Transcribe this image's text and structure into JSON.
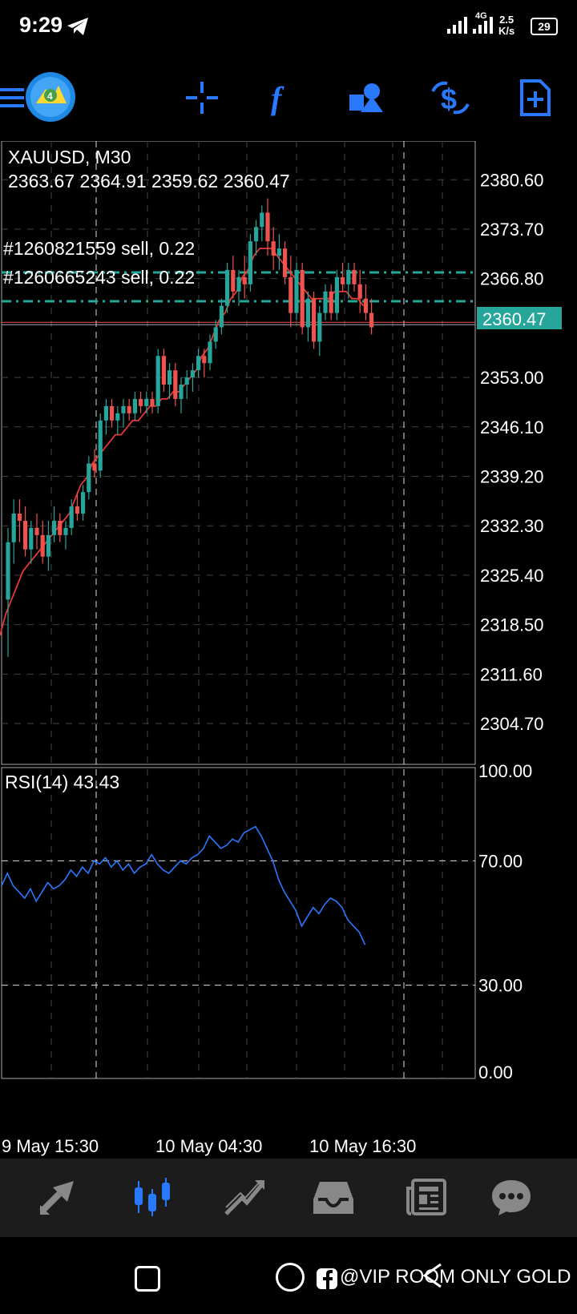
{
  "status_bar": {
    "time": "9:29",
    "network": "4G",
    "speed_value": "2.5",
    "speed_unit": "K/s",
    "battery": "29"
  },
  "toolbar": {
    "icons": [
      "menu-icon",
      "metatrader-logo-icon",
      "crosshair-icon",
      "indicators-icon",
      "objects-icon",
      "trade-icon",
      "new-order-icon"
    ],
    "accent": "#2979ff"
  },
  "chart": {
    "symbol": "XAUUSD, M30",
    "ohlc": "2363.67 2364.91 2359.62 2360.47",
    "current_price": "2360.47",
    "price_tag_color": "#26a69a",
    "orders": [
      {
        "label": "#1260821559 sell, 0.22"
      },
      {
        "label": "#1260665243 sell, 0.22"
      }
    ],
    "price_axis": [
      "2380.60",
      "2373.70",
      "2366.80",
      "2353.00",
      "2346.10",
      "2339.20",
      "2332.30",
      "2325.40",
      "2318.50",
      "2311.60",
      "2304.70"
    ],
    "time_axis": [
      "9 May 15:30",
      "10 May 04:30",
      "10 May 16:30"
    ],
    "rsi_label": "RSI(14) 43.43",
    "rsi_axis": [
      "100.00",
      "70.00",
      "30.00",
      "0.00"
    ]
  },
  "chart_data": {
    "type": "candlestick",
    "title": "XAUUSD, M30",
    "ylim": [
      2299,
      2386
    ],
    "bull_color": "#26a69a",
    "bear_color": "#ef5350",
    "ma_color": "#e53935",
    "candles": [
      [
        2322,
        2332,
        2314,
        2330
      ],
      [
        2330,
        2336,
        2327,
        2334
      ],
      [
        2334,
        2336,
        2330,
        2333
      ],
      [
        2333,
        2335,
        2328,
        2329
      ],
      [
        2329,
        2333,
        2327,
        2332
      ],
      [
        2332,
        2334,
        2329,
        2331
      ],
      [
        2331,
        2333,
        2327,
        2328
      ],
      [
        2328,
        2333,
        2326,
        2331
      ],
      [
        2331,
        2335,
        2330,
        2333
      ],
      [
        2333,
        2334,
        2330,
        2331
      ],
      [
        2331,
        2333,
        2329,
        2332
      ],
      [
        2332,
        2336,
        2331,
        2335
      ],
      [
        2335,
        2337,
        2333,
        2334
      ],
      [
        2334,
        2338,
        2333,
        2337
      ],
      [
        2337,
        2342,
        2336,
        2341
      ],
      [
        2341,
        2343,
        2339,
        2340
      ],
      [
        2340,
        2348,
        2339,
        2347
      ],
      [
        2347,
        2350,
        2345,
        2349
      ],
      [
        2349,
        2350,
        2346,
        2347
      ],
      [
        2347,
        2349,
        2345,
        2348
      ],
      [
        2348,
        2350,
        2346,
        2349
      ],
      [
        2349,
        2350,
        2347,
        2348
      ],
      [
        2348,
        2351,
        2347,
        2350
      ],
      [
        2350,
        2351,
        2348,
        2349
      ],
      [
        2349,
        2351,
        2348,
        2350
      ],
      [
        2350,
        2351,
        2348,
        2349
      ],
      [
        2349,
        2357,
        2348,
        2356
      ],
      [
        2356,
        2357,
        2351,
        2352
      ],
      [
        2352,
        2355,
        2350,
        2354
      ],
      [
        2354,
        2355,
        2349,
        2350
      ],
      [
        2350,
        2353,
        2348,
        2352
      ],
      [
        2352,
        2354,
        2350,
        2353
      ],
      [
        2353,
        2355,
        2351,
        2354
      ],
      [
        2354,
        2357,
        2353,
        2356
      ],
      [
        2356,
        2357,
        2353,
        2355
      ],
      [
        2355,
        2359,
        2354,
        2358
      ],
      [
        2358,
        2361,
        2357,
        2360
      ],
      [
        2360,
        2364,
        2359,
        2363
      ],
      [
        2363,
        2369,
        2362,
        2368
      ],
      [
        2368,
        2370,
        2364,
        2365
      ],
      [
        2365,
        2368,
        2363,
        2367
      ],
      [
        2367,
        2370,
        2364,
        2366
      ],
      [
        2366,
        2373,
        2365,
        2372
      ],
      [
        2372,
        2375,
        2370,
        2374
      ],
      [
        2374,
        2377,
        2372,
        2376
      ],
      [
        2376,
        2378,
        2370,
        2372
      ],
      [
        2372,
        2374,
        2368,
        2370
      ],
      [
        2370,
        2373,
        2368,
        2371
      ],
      [
        2371,
        2372,
        2366,
        2367
      ],
      [
        2367,
        2370,
        2360,
        2362
      ],
      [
        2362,
        2369,
        2361,
        2368
      ],
      [
        2368,
        2369,
        2359,
        2360
      ],
      [
        2360,
        2365,
        2358,
        2364
      ],
      [
        2364,
        2365,
        2357,
        2358
      ],
      [
        2358,
        2363,
        2356,
        2362
      ],
      [
        2362,
        2366,
        2361,
        2365
      ],
      [
        2365,
        2366,
        2361,
        2362
      ],
      [
        2362,
        2368,
        2361,
        2367
      ],
      [
        2367,
        2369,
        2365,
        2366
      ],
      [
        2366,
        2369,
        2364,
        2368
      ],
      [
        2368,
        2369,
        2365,
        2366
      ],
      [
        2366,
        2368,
        2362,
        2364
      ],
      [
        2364,
        2366,
        2361,
        2362
      ],
      [
        2362,
        2364,
        2359,
        2360
      ]
    ],
    "ma": [
      2317,
      2320,
      2322,
      2324,
      2326,
      2327,
      2328,
      2329,
      2330,
      2331,
      2332,
      2333,
      2334,
      2336,
      2338,
      2339,
      2341,
      2342,
      2343,
      2344,
      2345,
      2345,
      2346,
      2347,
      2347,
      2348,
      2349,
      2349,
      2350,
      2350,
      2351,
      2351,
      2352,
      2353,
      2354,
      2356,
      2357,
      2359,
      2361,
      2362,
      2364,
      2365,
      2367,
      2368,
      2370,
      2371,
      2371,
      2371,
      2370,
      2369,
      2368,
      2367,
      2366,
      2365,
      2364,
      2364,
      2364,
      2364,
      2365,
      2365,
      2365,
      2364,
      2364,
      2363
    ],
    "rsi": [
      62,
      66,
      62,
      60,
      58,
      61,
      57,
      60,
      63,
      61,
      62,
      64,
      67,
      65,
      68,
      66,
      70,
      69,
      71,
      68,
      70,
      67,
      69,
      66,
      68,
      69,
      72,
      69,
      67,
      66,
      68,
      70,
      69,
      71,
      72,
      74,
      78,
      76,
      74,
      75,
      77,
      76,
      79,
      80,
      81,
      78,
      74,
      70,
      64,
      60,
      57,
      54,
      49,
      52,
      55,
      53,
      56,
      58,
      57,
      55,
      51,
      49,
      47,
      43
    ]
  },
  "bottom_nav": {
    "items": [
      "quotes-icon",
      "chart-icon",
      "trade-icon",
      "history-icon",
      "news-icon",
      "chat-icon"
    ],
    "active_index": 1
  },
  "watermark": "@VIP ROOM ONLY GOLD"
}
